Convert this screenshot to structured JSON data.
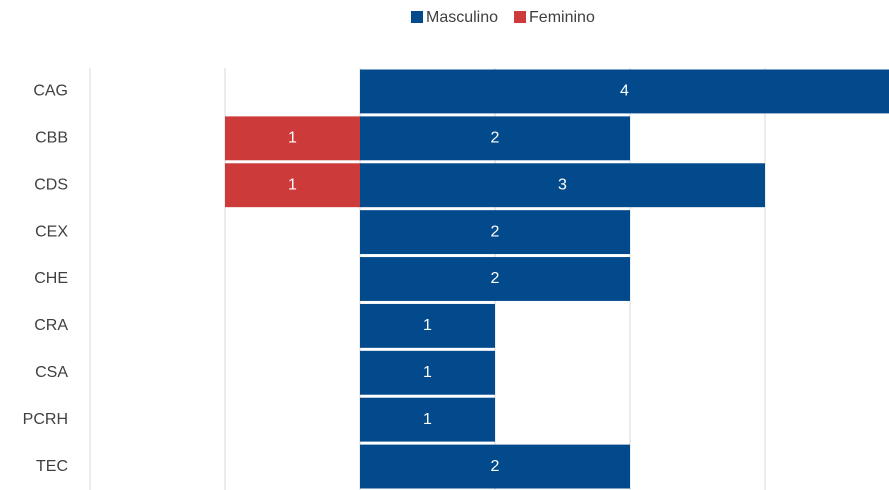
{
  "chart_data": {
    "type": "diverging_bar",
    "categories": [
      "CAG",
      "CBB",
      "CDS",
      "CEX",
      "CHE",
      "CRA",
      "CSA",
      "PCRH",
      "TEC"
    ],
    "series": [
      {
        "name": "Masculino",
        "color": "#034a8c",
        "values": [
          4,
          2,
          3,
          2,
          2,
          1,
          1,
          1,
          2
        ],
        "side": "right"
      },
      {
        "name": "Feminino",
        "color": "#cc3a3a",
        "values": [
          null,
          1,
          1,
          null,
          null,
          null,
          null,
          null,
          null
        ],
        "side": "left"
      }
    ],
    "xlim": [
      -2,
      4
    ],
    "xticks": [
      -2,
      -1,
      0,
      1,
      2,
      3
    ],
    "grid": true,
    "tick_labels": false,
    "legend": "top"
  }
}
